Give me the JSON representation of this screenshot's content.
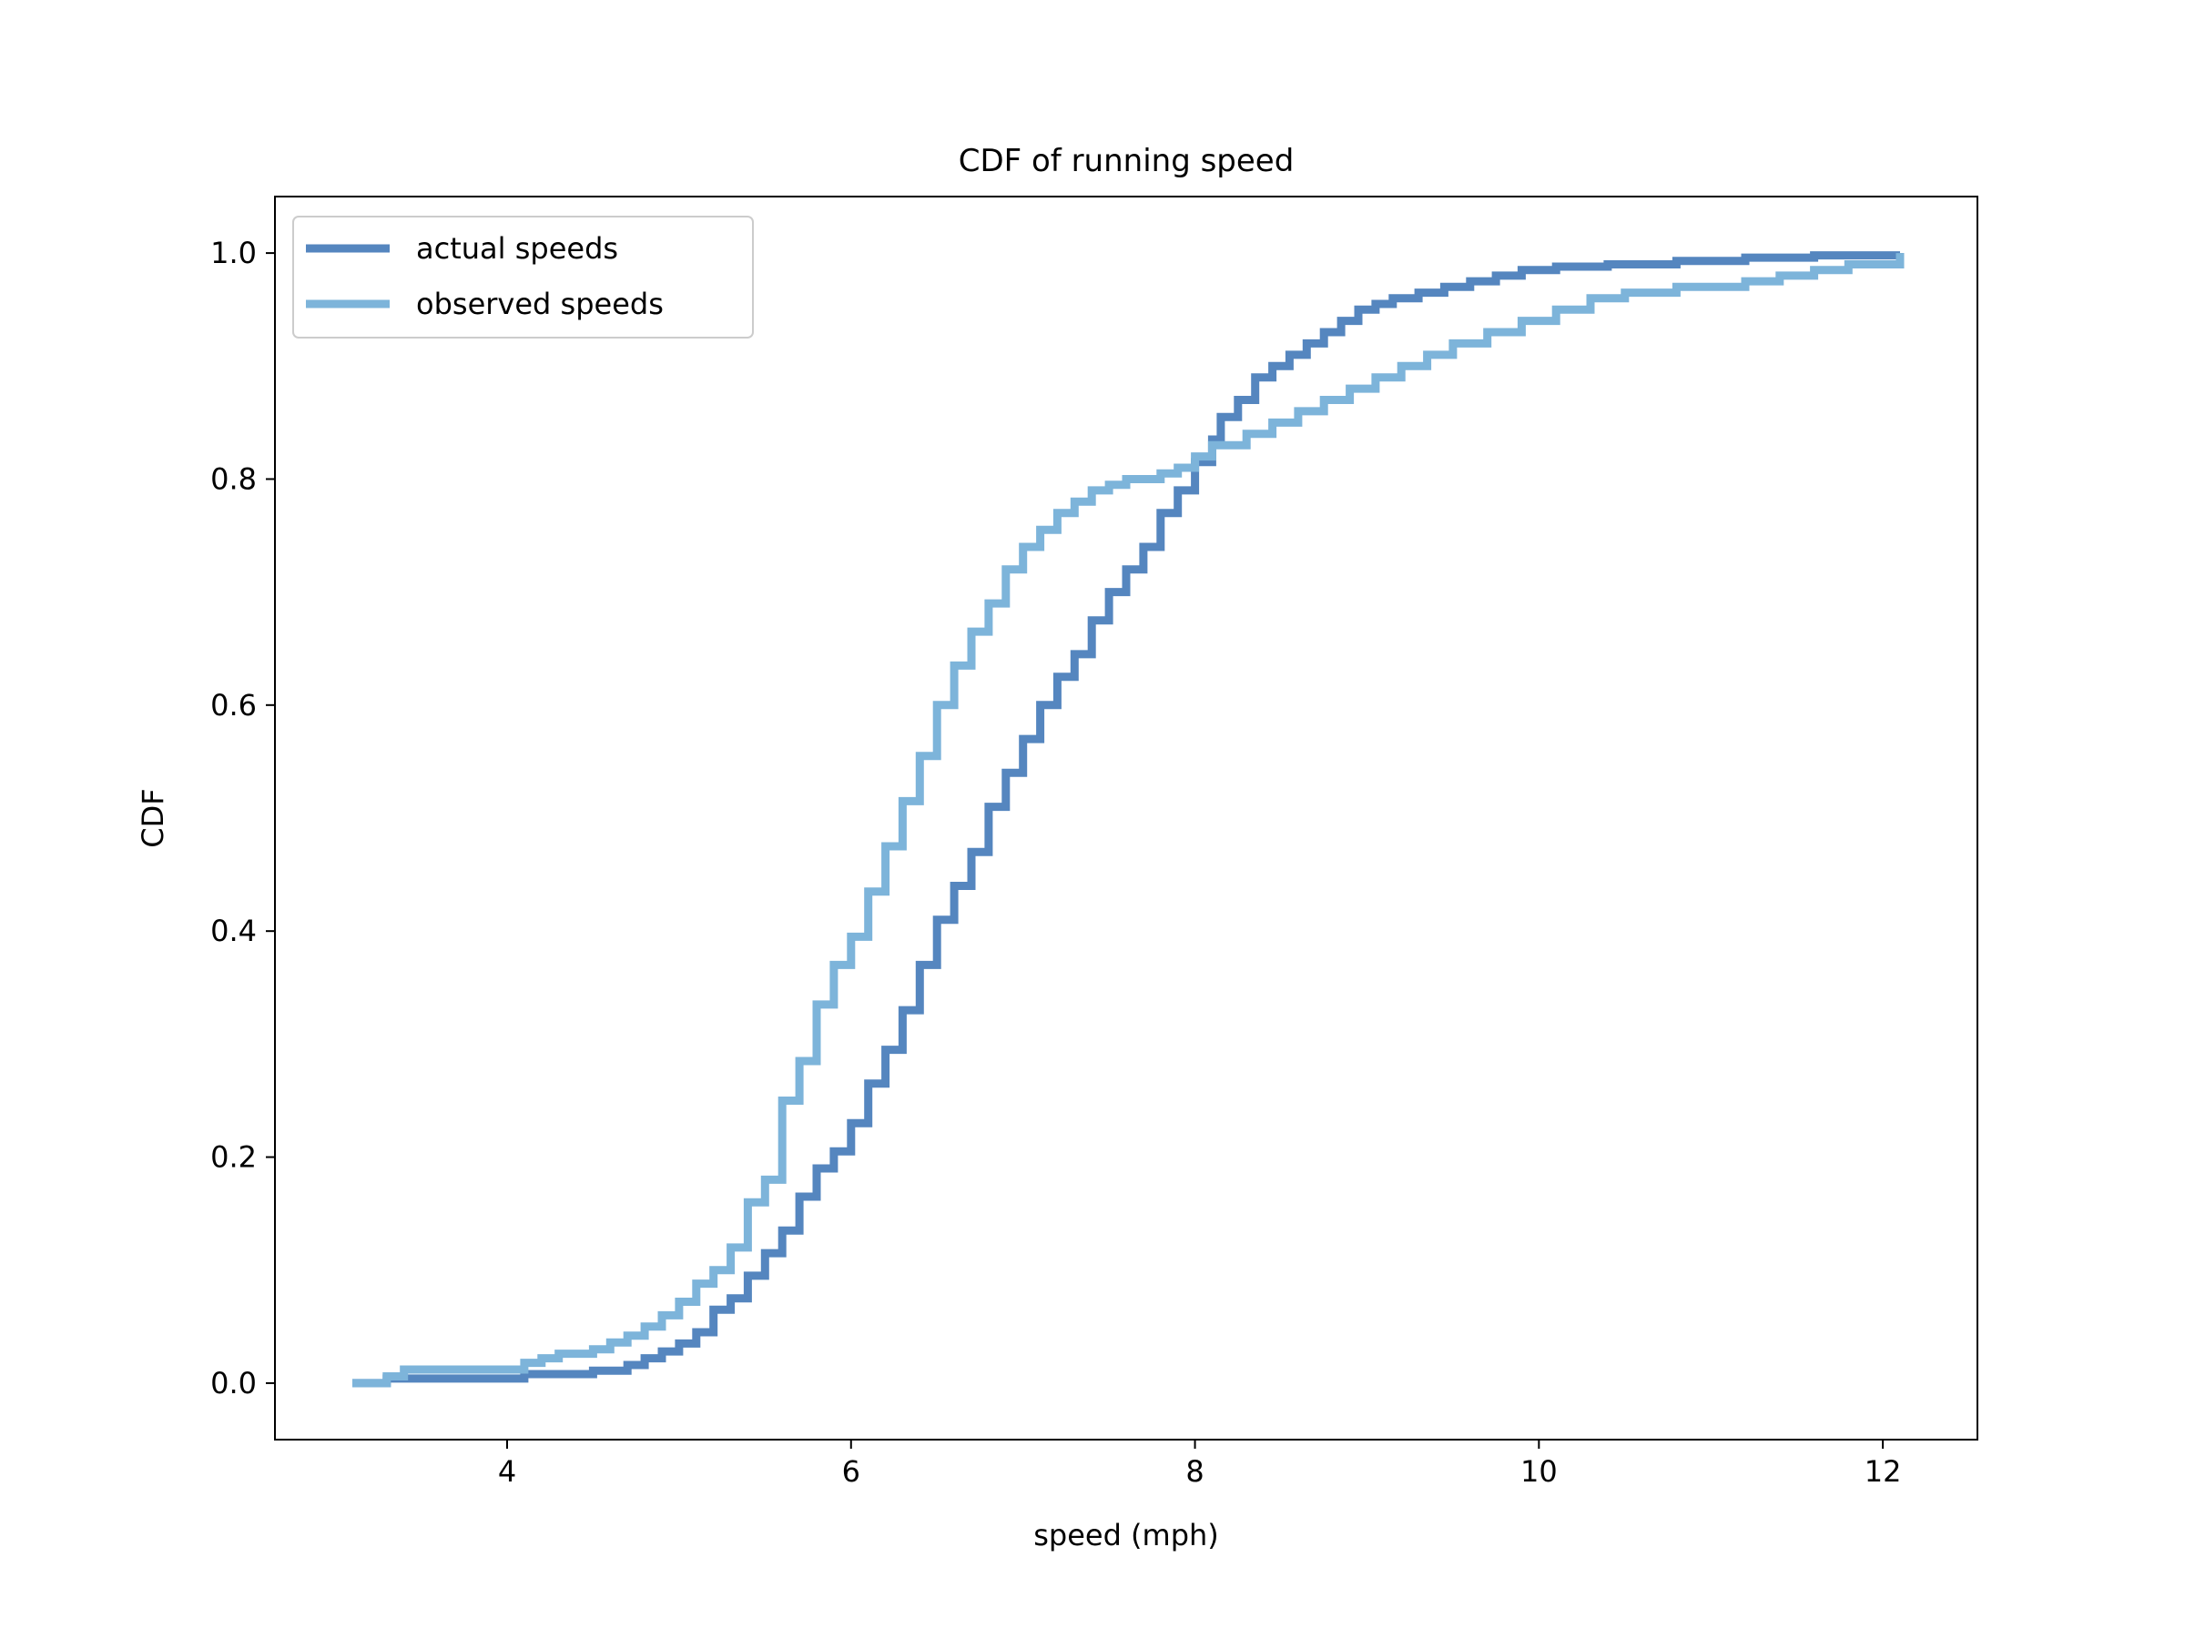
{
  "chart_data": {
    "type": "line",
    "title": "CDF of running speed",
    "xlabel": "speed (mph)",
    "ylabel": "CDF",
    "xlim": [
      2.65,
      12.55
    ],
    "ylim": [
      -0.05,
      1.05
    ],
    "xticks": [
      4,
      6,
      8,
      10,
      12
    ],
    "xtick_labels": [
      "4",
      "6",
      "8",
      "10",
      "12"
    ],
    "yticks": [
      0.0,
      0.2,
      0.4,
      0.6,
      0.8,
      1.0
    ],
    "ytick_labels": [
      "0.0",
      "0.2",
      "0.4",
      "0.6",
      "0.8",
      "1.0"
    ],
    "grid": false,
    "legend": {
      "position": "top-left"
    },
    "series": [
      {
        "name": "actual speeds",
        "color": "#5586bf",
        "steps": [
          [
            3.1,
            0.0
          ],
          [
            3.3,
            0.004
          ],
          [
            4.1,
            0.008
          ],
          [
            4.5,
            0.011
          ],
          [
            4.7,
            0.016
          ],
          [
            4.8,
            0.022
          ],
          [
            4.9,
            0.028
          ],
          [
            5.0,
            0.035
          ],
          [
            5.1,
            0.045
          ],
          [
            5.2,
            0.065
          ],
          [
            5.3,
            0.075
          ],
          [
            5.4,
            0.095
          ],
          [
            5.5,
            0.115
          ],
          [
            5.6,
            0.135
          ],
          [
            5.7,
            0.165
          ],
          [
            5.8,
            0.19
          ],
          [
            5.9,
            0.205
          ],
          [
            6.0,
            0.23
          ],
          [
            6.1,
            0.265
          ],
          [
            6.2,
            0.295
          ],
          [
            6.3,
            0.33
          ],
          [
            6.4,
            0.37
          ],
          [
            6.5,
            0.41
          ],
          [
            6.6,
            0.44
          ],
          [
            6.7,
            0.47
          ],
          [
            6.8,
            0.51
          ],
          [
            6.9,
            0.54
          ],
          [
            7.0,
            0.57
          ],
          [
            7.1,
            0.6
          ],
          [
            7.2,
            0.625
          ],
          [
            7.3,
            0.645
          ],
          [
            7.4,
            0.675
          ],
          [
            7.5,
            0.7
          ],
          [
            7.6,
            0.72
          ],
          [
            7.7,
            0.74
          ],
          [
            7.8,
            0.77
          ],
          [
            7.9,
            0.79
          ],
          [
            8.0,
            0.815
          ],
          [
            8.1,
            0.835
          ],
          [
            8.15,
            0.855
          ],
          [
            8.25,
            0.87
          ],
          [
            8.35,
            0.89
          ],
          [
            8.45,
            0.9
          ],
          [
            8.55,
            0.91
          ],
          [
            8.65,
            0.92
          ],
          [
            8.75,
            0.93
          ],
          [
            8.85,
            0.94
          ],
          [
            8.95,
            0.95
          ],
          [
            9.05,
            0.955
          ],
          [
            9.15,
            0.96
          ],
          [
            9.3,
            0.965
          ],
          [
            9.45,
            0.97
          ],
          [
            9.6,
            0.975
          ],
          [
            9.75,
            0.98
          ],
          [
            9.9,
            0.985
          ],
          [
            10.1,
            0.988
          ],
          [
            10.4,
            0.99
          ],
          [
            10.8,
            0.993
          ],
          [
            11.2,
            0.996
          ],
          [
            11.6,
            0.998
          ],
          [
            12.1,
            1.0
          ]
        ]
      },
      {
        "name": "observed speeds",
        "color": "#7db4da",
        "steps": [
          [
            3.1,
            0.0
          ],
          [
            3.3,
            0.006
          ],
          [
            3.4,
            0.012
          ],
          [
            4.1,
            0.018
          ],
          [
            4.2,
            0.022
          ],
          [
            4.3,
            0.026
          ],
          [
            4.5,
            0.03
          ],
          [
            4.6,
            0.036
          ],
          [
            4.7,
            0.042
          ],
          [
            4.8,
            0.05
          ],
          [
            4.9,
            0.06
          ],
          [
            5.0,
            0.072
          ],
          [
            5.1,
            0.088
          ],
          [
            5.2,
            0.1
          ],
          [
            5.3,
            0.12
          ],
          [
            5.4,
            0.16
          ],
          [
            5.5,
            0.18
          ],
          [
            5.6,
            0.25
          ],
          [
            5.7,
            0.285
          ],
          [
            5.8,
            0.335
          ],
          [
            5.9,
            0.37
          ],
          [
            6.0,
            0.395
          ],
          [
            6.1,
            0.435
          ],
          [
            6.2,
            0.475
          ],
          [
            6.3,
            0.515
          ],
          [
            6.4,
            0.555
          ],
          [
            6.5,
            0.6
          ],
          [
            6.6,
            0.635
          ],
          [
            6.7,
            0.665
          ],
          [
            6.8,
            0.69
          ],
          [
            6.9,
            0.72
          ],
          [
            7.0,
            0.74
          ],
          [
            7.1,
            0.755
          ],
          [
            7.2,
            0.77
          ],
          [
            7.3,
            0.78
          ],
          [
            7.4,
            0.79
          ],
          [
            7.5,
            0.795
          ],
          [
            7.6,
            0.8
          ],
          [
            7.8,
            0.805
          ],
          [
            7.9,
            0.81
          ],
          [
            8.0,
            0.82
          ],
          [
            8.1,
            0.83
          ],
          [
            8.3,
            0.84
          ],
          [
            8.45,
            0.85
          ],
          [
            8.6,
            0.86
          ],
          [
            8.75,
            0.87
          ],
          [
            8.9,
            0.88
          ],
          [
            9.05,
            0.89
          ],
          [
            9.2,
            0.9
          ],
          [
            9.35,
            0.91
          ],
          [
            9.5,
            0.92
          ],
          [
            9.7,
            0.93
          ],
          [
            9.9,
            0.94
          ],
          [
            10.1,
            0.95
          ],
          [
            10.3,
            0.96
          ],
          [
            10.5,
            0.965
          ],
          [
            10.8,
            0.97
          ],
          [
            11.2,
            0.975
          ],
          [
            11.4,
            0.98
          ],
          [
            11.6,
            0.985
          ],
          [
            11.8,
            0.99
          ],
          [
            12.1,
            1.0
          ]
        ]
      }
    ]
  }
}
